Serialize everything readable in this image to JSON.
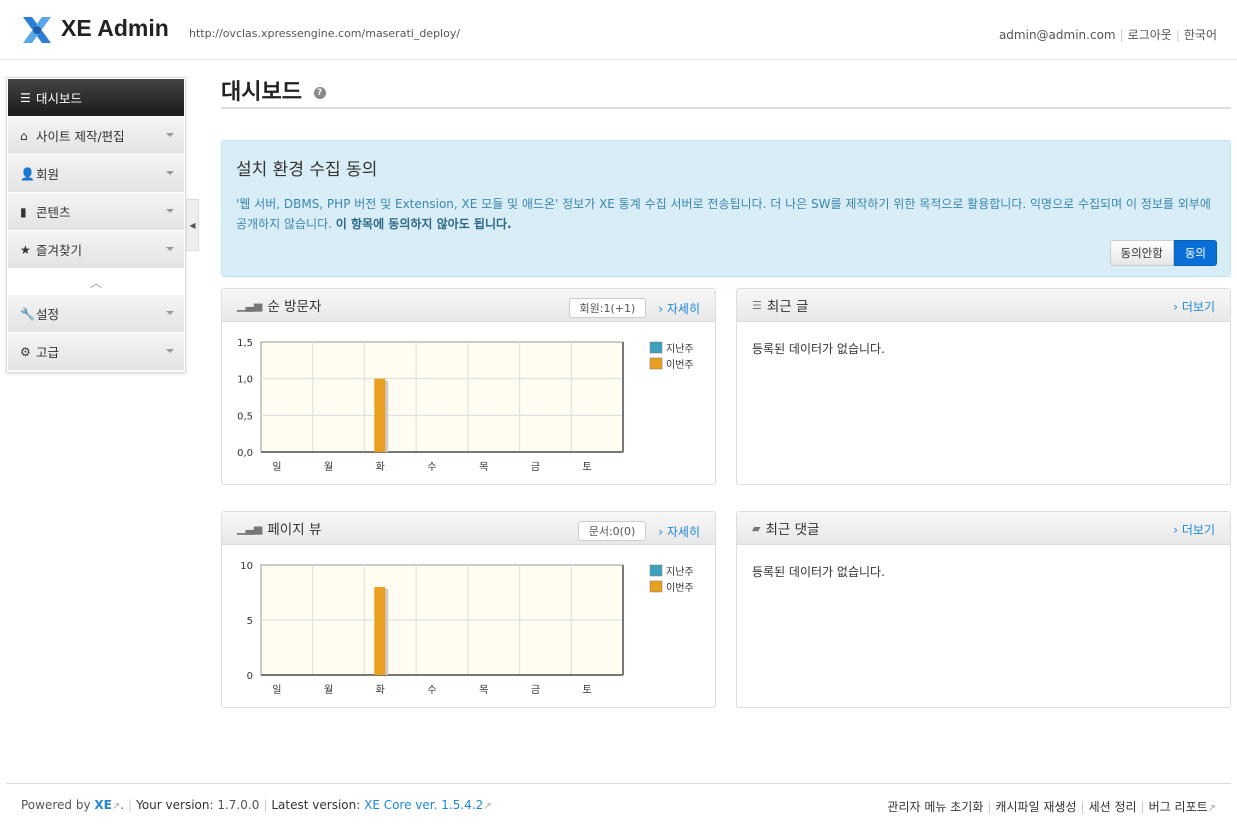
{
  "header": {
    "brand": "XE Admin",
    "url": "http://ovclas.xpressengine.com/maserati_deploy/",
    "email": "admin@admin.com",
    "logout": "로그아웃",
    "language": "한국어"
  },
  "sidebar": {
    "items": [
      {
        "label": "대시보드",
        "icon": "list-icon",
        "active": true
      },
      {
        "label": "사이트 제작/편집",
        "icon": "home-icon"
      },
      {
        "label": "회원",
        "icon": "user-icon"
      },
      {
        "label": "콘텐츠",
        "icon": "book-icon"
      },
      {
        "label": "즐겨찾기",
        "icon": "star-icon"
      },
      {
        "label": "설정",
        "icon": "wrench-icon"
      },
      {
        "label": "고급",
        "icon": "gear-icon"
      }
    ]
  },
  "page": {
    "title": "대시보드"
  },
  "notice": {
    "title": "설치 환경 수집 동의",
    "text": "'웹 서버, DBMS, PHP 버전 및 Extension, XE 모듈 및 애드온' 정보가 XE 통계 수집 서버로 전송됩니다. 더 나은 SW를 제작하기 위한 목적으로 활용합니다. 익명으로 수집되며 이 정보를 외부에 공개하지 않습니다.",
    "bold": "이 항목에 동의하지 않아도 됩니다.",
    "disagree": "동의안함",
    "agree": "동의"
  },
  "visitors": {
    "title": "순 방문자",
    "badge": "회원:1(+1)",
    "more": "› 자세히"
  },
  "pageviews": {
    "title": "페이지 뷰",
    "badge": "문서:0(0)",
    "more": "› 자세히"
  },
  "recent_posts": {
    "title": "최근 글",
    "more": "› 더보기",
    "empty": "등록된 데이터가 없습니다."
  },
  "recent_comments": {
    "title": "최근 댓글",
    "more": "› 더보기",
    "empty": "등록된 데이터가 없습니다."
  },
  "colors": {
    "last_week": "#3fa2bd",
    "this_week": "#e8a020"
  },
  "chart_data": [
    {
      "type": "bar",
      "categories": [
        "일",
        "월",
        "화",
        "수",
        "목",
        "금",
        "토"
      ],
      "ylim": [
        0,
        1.5
      ],
      "yticks": [
        "0,0",
        "0,5",
        "1,0",
        "1,5"
      ],
      "ytick_values": [
        0,
        0.5,
        1,
        1.5
      ],
      "legend": "right",
      "grid": true,
      "series": [
        {
          "name": "지난주",
          "values": [
            0,
            0,
            0,
            0,
            0,
            0,
            0
          ]
        },
        {
          "name": "이번주",
          "values": [
            0,
            0,
            1,
            0,
            0,
            0,
            0
          ]
        }
      ]
    },
    {
      "type": "bar",
      "categories": [
        "일",
        "월",
        "화",
        "수",
        "목",
        "금",
        "토"
      ],
      "ylim": [
        0,
        10
      ],
      "yticks": [
        "0",
        "5",
        "10"
      ],
      "ytick_values": [
        0,
        5,
        10
      ],
      "legend": "right",
      "grid": true,
      "series": [
        {
          "name": "지난주",
          "values": [
            0,
            0,
            0,
            0,
            0,
            0,
            0
          ]
        },
        {
          "name": "이번주",
          "values": [
            0,
            0,
            8,
            0,
            0,
            0,
            0
          ]
        }
      ]
    }
  ],
  "footer": {
    "powered": "Powered by ",
    "xe": "XE",
    "your_version_label": "Your version",
    "your_version": "1.7.0.0",
    "latest_label": "Latest version",
    "latest": "XE Core ver. 1.5.4.2",
    "links": [
      "관리자 메뉴 초기화",
      "캐시파일 재생성",
      "세션 정리",
      "버그 리포트"
    ]
  }
}
